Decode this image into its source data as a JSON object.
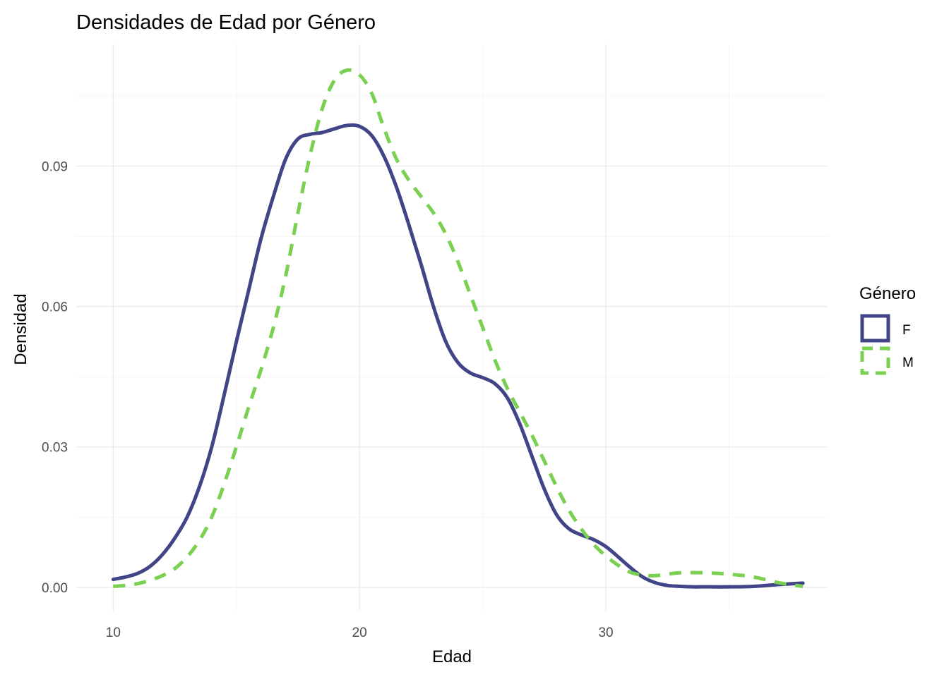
{
  "chart_data": {
    "type": "line",
    "title": "Densidades de Edad por Género",
    "xlabel": "Edad",
    "ylabel": "Densidad",
    "xlim": [
      8.5,
      39
    ],
    "ylim": [
      -0.005,
      0.116
    ],
    "x_ticks": [
      {
        "value": 10,
        "label": "10"
      },
      {
        "value": 20,
        "label": "20"
      },
      {
        "value": 30,
        "label": "30"
      }
    ],
    "y_ticks": [
      {
        "value": 0.0,
        "label": "0.00"
      },
      {
        "value": 0.03,
        "label": "0.03"
      },
      {
        "value": 0.06,
        "label": "0.06"
      },
      {
        "value": 0.09,
        "label": "0.09"
      }
    ],
    "grid": true,
    "legend": {
      "title": "Género",
      "position": "right"
    },
    "series": [
      {
        "name": "F",
        "color": "#414487",
        "dash": "solid",
        "x": [
          10,
          10.5,
          11,
          11.5,
          12,
          12.5,
          13,
          13.5,
          14,
          14.5,
          15,
          15.5,
          16,
          16.5,
          17,
          17.5,
          18,
          18.5,
          19,
          19.5,
          20,
          20.5,
          21,
          21.5,
          22,
          22.5,
          23,
          23.5,
          24,
          24.5,
          25,
          25.5,
          26,
          26.5,
          27,
          27.5,
          28,
          28.5,
          29,
          29.5,
          30,
          30.5,
          31,
          31.5,
          32,
          32.5,
          33,
          33.5,
          34,
          35,
          36,
          37,
          38
        ],
        "y": [
          0.0017,
          0.0022,
          0.003,
          0.0045,
          0.007,
          0.0105,
          0.015,
          0.0215,
          0.03,
          0.041,
          0.0525,
          0.0635,
          0.0745,
          0.0835,
          0.0915,
          0.0958,
          0.0968,
          0.0972,
          0.098,
          0.0987,
          0.0985,
          0.0965,
          0.092,
          0.0855,
          0.0775,
          0.069,
          0.06,
          0.0525,
          0.048,
          0.0458,
          0.0448,
          0.0435,
          0.0405,
          0.035,
          0.028,
          0.021,
          0.0155,
          0.0125,
          0.0112,
          0.0102,
          0.0087,
          0.0065,
          0.0042,
          0.0022,
          0.001,
          0.0004,
          0.0002,
          0.0001,
          0.0001,
          0.0001,
          0.0002,
          0.0006,
          0.0009
        ]
      },
      {
        "name": "M",
        "color": "#7AD151",
        "dash": "dashed",
        "x": [
          10,
          10.5,
          11,
          11.5,
          12,
          12.5,
          13,
          13.5,
          14,
          14.5,
          15,
          15.5,
          16,
          16.5,
          17,
          17.5,
          18,
          18.5,
          19,
          19.5,
          20,
          20.5,
          21,
          21.5,
          22,
          22.5,
          23,
          23.5,
          24,
          24.5,
          25,
          25.5,
          26,
          26.5,
          27,
          27.5,
          28,
          28.5,
          29,
          29.5,
          30,
          30.5,
          31,
          31.5,
          32,
          32.5,
          33,
          34,
          35,
          36,
          37,
          38
        ],
        "y": [
          0.0002,
          0.0004,
          0.0008,
          0.0015,
          0.0025,
          0.004,
          0.0065,
          0.01,
          0.015,
          0.022,
          0.03,
          0.0385,
          0.0465,
          0.0555,
          0.0665,
          0.08,
          0.0925,
          0.1025,
          0.1085,
          0.1105,
          0.1095,
          0.1055,
          0.098,
          0.0915,
          0.087,
          0.0835,
          0.08,
          0.0755,
          0.0695,
          0.0625,
          0.0555,
          0.0485,
          0.0425,
          0.0375,
          0.0325,
          0.027,
          0.0215,
          0.0165,
          0.0125,
          0.0092,
          0.0067,
          0.0047,
          0.0032,
          0.0026,
          0.0025,
          0.0028,
          0.0031,
          0.0031,
          0.0028,
          0.0022,
          0.001,
          0.0002
        ]
      }
    ]
  }
}
